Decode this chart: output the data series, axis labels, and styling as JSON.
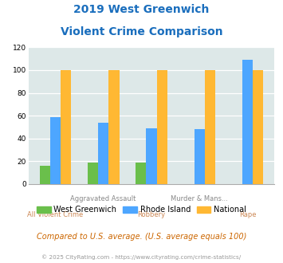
{
  "title_line1": "2019 West Greenwich",
  "title_line2": "Violent Crime Comparison",
  "categories": [
    "All Violent Crime",
    "Aggravated Assault",
    "Robbery",
    "Murder & Mans...",
    "Rape"
  ],
  "west_greenwich": [
    16,
    19,
    19,
    0,
    0
  ],
  "rhode_island": [
    59,
    54,
    49,
    48,
    109
  ],
  "national": [
    100,
    100,
    100,
    100,
    100
  ],
  "colors": {
    "west_greenwich": "#6abf4b",
    "rhode_island": "#4da6ff",
    "national": "#ffb833"
  },
  "ylim": [
    0,
    120
  ],
  "yticks": [
    0,
    20,
    40,
    60,
    80,
    100,
    120
  ],
  "footnote": "Compared to U.S. average. (U.S. average equals 100)",
  "copyright": "© 2025 CityRating.com - https://www.cityrating.com/crime-statistics/",
  "bg_color": "#dde8e8",
  "title_color": "#1a6ebd",
  "label_top_color": "#888888",
  "label_bottom_color": "#cc8855",
  "footnote_color": "#cc6600",
  "copyright_color": "#999999",
  "bar_width": 0.22
}
